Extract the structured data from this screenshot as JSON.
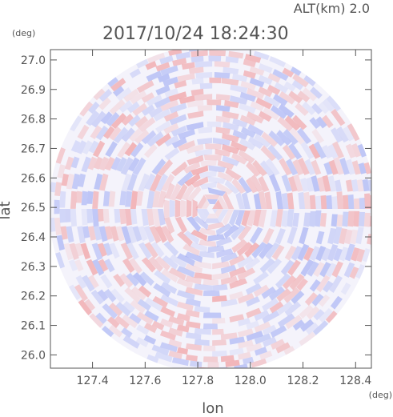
{
  "header": {
    "altitude_label": "ALT(km) 2.0",
    "timestamp": "2017/10/24 18:24:30",
    "lat_unit": "(deg)",
    "lon_unit": "(deg)"
  },
  "chart_data": {
    "type": "heatmap",
    "title": "2017/10/24 18:24:30",
    "subtitle": "ALT(km) 2.0",
    "xlabel": "lon",
    "ylabel": "lat",
    "x_unit": "(deg)",
    "y_unit": "(deg)",
    "xlim": [
      127.24,
      128.46
    ],
    "ylim": [
      25.955,
      27.035
    ],
    "x_ticks": [
      127.4,
      127.6,
      127.8,
      128.0,
      128.2,
      128.4
    ],
    "x_tick_labels": [
      "127.4",
      "127.6",
      "127.8",
      "128.0",
      "128.2",
      "128.4"
    ],
    "y_ticks": [
      26.0,
      26.1,
      26.2,
      26.3,
      26.4,
      26.5,
      26.6,
      26.7,
      26.8,
      26.9,
      27.0
    ],
    "y_tick_labels": [
      "26.0",
      "26.1",
      "26.2",
      "26.3",
      "26.4",
      "26.5",
      "26.6",
      "26.7",
      "26.8",
      "26.9",
      "27.0"
    ],
    "domain_center": {
      "lon": 127.855,
      "lat": 26.495
    },
    "domain_radius_deg": {
      "lon": 0.62,
      "lat": 0.555
    },
    "colors": {
      "positive": "#f08080",
      "negative": "#8c9cf2",
      "background": "#ffffff",
      "frame": "#555555"
    },
    "grid": false,
    "legend": "none"
  }
}
